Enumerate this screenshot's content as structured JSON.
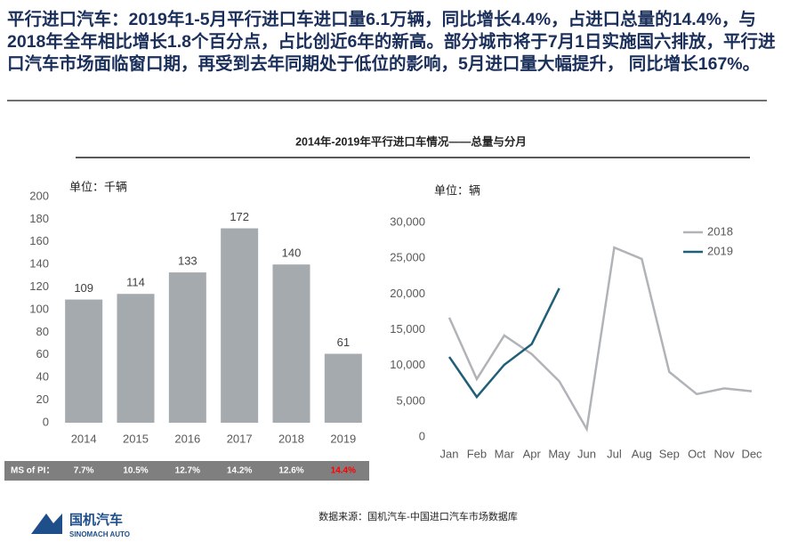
{
  "header": {
    "text": "平行进口汽车：2019年1-5月平行进口车进口量6.1万辆，同比增长4.4%，占进口总量的14.4%，与2018年全年相比增长1.8个百分点，占比创近6年的新高。部分城市将于7月1日实施国六排放，平行进口汽车市场面临窗口期，再受到去年同期处于低位的影响，5月进口量大幅提升， 同比增长167%。"
  },
  "figure_title": "2014年-2019年平行进口车情况——总量与分月",
  "chart_data": [
    {
      "type": "bar",
      "unit_label": "单位：千辆",
      "categories": [
        "2014",
        "2015",
        "2016",
        "2017",
        "2018",
        "2019"
      ],
      "values": [
        109,
        114,
        133,
        172,
        140,
        61
      ],
      "color": "#a5aaaf",
      "ylim": [
        0,
        200
      ],
      "yticks": [
        0,
        20,
        40,
        60,
        80,
        100,
        120,
        140,
        160,
        180,
        200
      ]
    },
    {
      "type": "line",
      "unit_label": "单位：辆",
      "legend": "upper right",
      "categories": [
        "Jan",
        "Feb",
        "Mar",
        "Apr",
        "May",
        "Jun",
        "Jul",
        "Aug",
        "Sep",
        "Oct",
        "Nov",
        "Dec"
      ],
      "series": [
        {
          "name": "2018",
          "color": "#b0b4b8",
          "values": [
            16700,
            8100,
            14200,
            11600,
            7800,
            1100,
            26500,
            24900,
            9100,
            6000,
            6800,
            6400
          ]
        },
        {
          "name": "2019",
          "color": "#1f5f78",
          "values": [
            11200,
            5600,
            10100,
            13000,
            20800,
            null,
            null,
            null,
            null,
            null,
            null,
            null
          ]
        }
      ],
      "ylim": [
        0,
        30000
      ],
      "yticks": [
        0,
        {
          "value": 5000,
          "label": "5,000"
        },
        {
          "value": 10000,
          "label": "10,000"
        },
        {
          "value": 15000,
          "label": "15,000"
        },
        {
          "value": 20000,
          "label": "20,000"
        },
        {
          "value": 25000,
          "label": "25,000"
        },
        {
          "value": 30000,
          "label": "30,000"
        }
      ]
    }
  ],
  "ms_row": {
    "label": "MS of PI：",
    "values": [
      7.7,
      10.5,
      12.7,
      14.2,
      12.6,
      14.4
    ],
    "value_labels": [
      "7.7%",
      "10.5%",
      "12.7%",
      "14.2%",
      "12.6%",
      "14.4%"
    ],
    "highlight_color": "#ff0000"
  },
  "source": "数据来源：国机汽车-中国进口汽车市场数据库",
  "logo": {
    "name": "国机汽车",
    "sub": "SINOMACH AUTO"
  }
}
